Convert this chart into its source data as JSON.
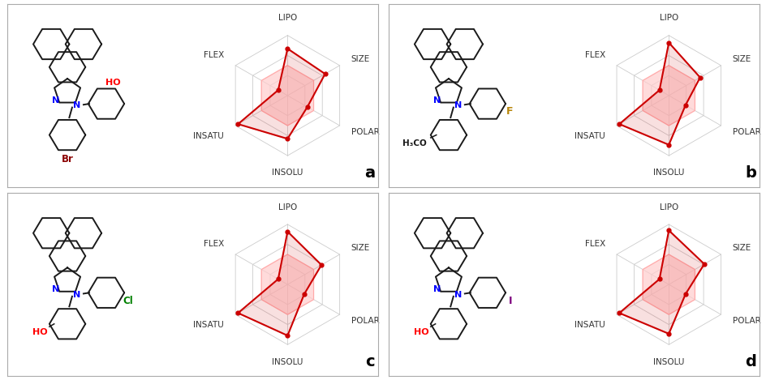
{
  "panels": [
    {
      "label": "a",
      "axes_order": [
        "LIPO",
        "SIZE",
        "POLAR",
        "INSOLU",
        "INSATU",
        "FLEX"
      ],
      "values": [
        0.78,
        0.72,
        0.38,
        0.72,
        0.95,
        0.18
      ],
      "feasible": [
        0.5,
        0.5,
        0.5,
        0.5,
        0.5,
        0.5
      ]
    },
    {
      "label": "b",
      "axes_order": [
        "LIPO",
        "SIZE",
        "POLAR",
        "INSOLU",
        "INSATU",
        "FLEX"
      ],
      "values": [
        0.88,
        0.6,
        0.32,
        0.82,
        0.95,
        0.18
      ],
      "feasible": [
        0.5,
        0.5,
        0.5,
        0.5,
        0.5,
        0.5
      ]
    },
    {
      "label": "c",
      "axes_order": [
        "LIPO",
        "SIZE",
        "POLAR",
        "INSOLU",
        "INSATU",
        "FLEX"
      ],
      "values": [
        0.88,
        0.65,
        0.32,
        0.85,
        0.95,
        0.18
      ],
      "feasible": [
        0.5,
        0.5,
        0.5,
        0.5,
        0.5,
        0.5
      ]
    },
    {
      "label": "d",
      "axes_order": [
        "LIPO",
        "SIZE",
        "POLAR",
        "INSOLU",
        "INSATU",
        "FLEX"
      ],
      "values": [
        0.9,
        0.68,
        0.32,
        0.82,
        0.95,
        0.18
      ],
      "feasible": [
        0.5,
        0.5,
        0.5,
        0.5,
        0.5,
        0.5
      ]
    }
  ],
  "radar_line_color": "#cc0000",
  "radar_fill_color": "#ffcccc",
  "grid_color": "#cccccc",
  "background_color": "#ffffff",
  "border_color": "#aaaaaa",
  "num_rings": 3,
  "axis_label_fontsize": 7.5,
  "panel_label_fontsize": 14
}
